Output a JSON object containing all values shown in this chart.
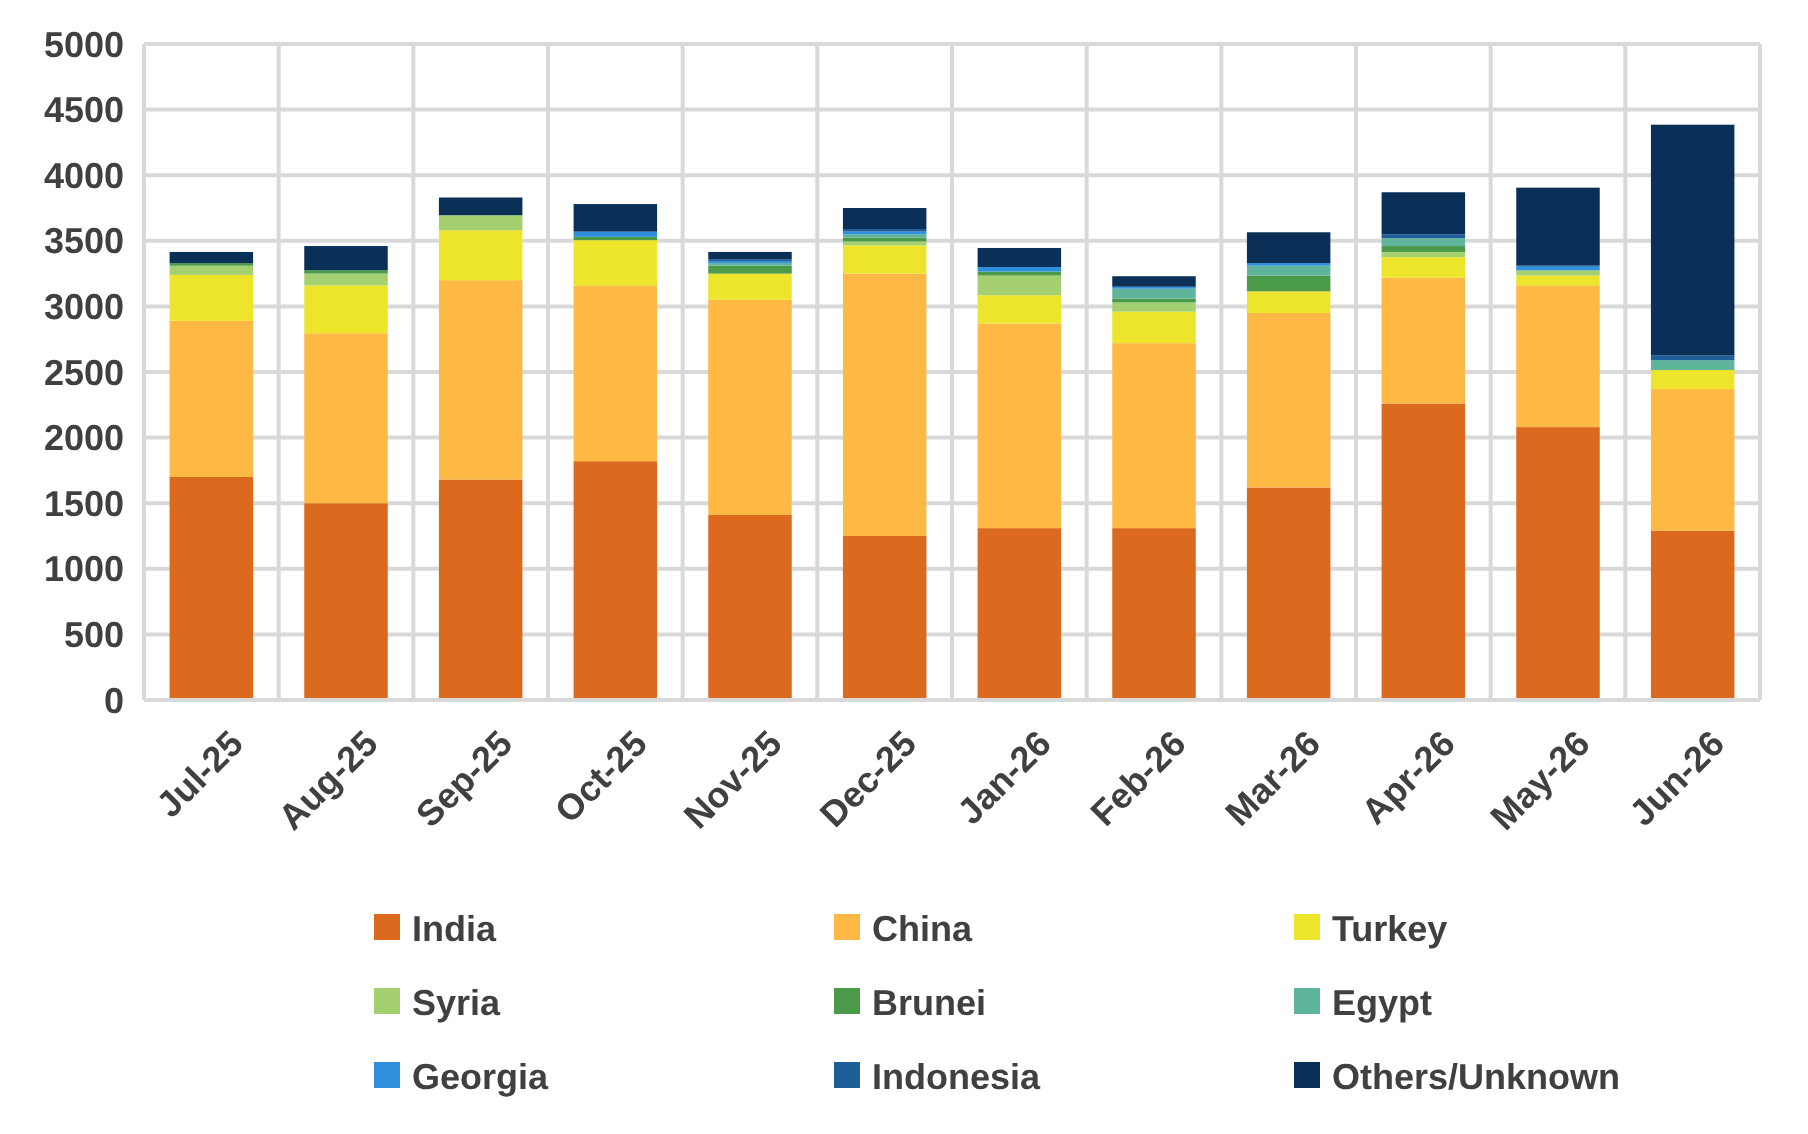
{
  "chart_data": {
    "type": "bar",
    "stacked": true,
    "categories": [
      "Jul-25",
      "Aug-25",
      "Sep-25",
      "Oct-25",
      "Nov-25",
      "Dec-25",
      "Jan-26",
      "Feb-26",
      "Mar-26",
      "Apr-26",
      "May-26",
      "Jun-26"
    ],
    "series": [
      {
        "name": "India",
        "color": "#dc6a1e",
        "values": [
          1700,
          1500,
          1680,
          1820,
          1410,
          1250,
          1310,
          1310,
          1620,
          2260,
          2080,
          1290
        ]
      },
      {
        "name": "China",
        "color": "#fdb943",
        "values": [
          1190,
          1295,
          1520,
          1340,
          1640,
          2000,
          1560,
          1410,
          1330,
          960,
          1080,
          1080
        ]
      },
      {
        "name": "Turkey",
        "color": "#ede52c",
        "values": [
          350,
          365,
          380,
          345,
          200,
          215,
          215,
          240,
          165,
          155,
          75,
          145
        ]
      },
      {
        "name": "Syria",
        "color": "#a4d070",
        "values": [
          70,
          90,
          115,
          0,
          0,
          30,
          150,
          70,
          0,
          40,
          40,
          0
        ]
      },
      {
        "name": "Brunei",
        "color": "#4a9a4a",
        "values": [
          20,
          25,
          0,
          25,
          60,
          30,
          30,
          30,
          120,
          45,
          0,
          0
        ]
      },
      {
        "name": "Egypt",
        "color": "#5fb49c",
        "values": [
          0,
          0,
          0,
          0,
          20,
          25,
          0,
          75,
          75,
          60,
          0,
          75
        ]
      },
      {
        "name": "Georgia",
        "color": "#2f8fdc",
        "values": [
          0,
          0,
          0,
          40,
          15,
          20,
          35,
          15,
          20,
          0,
          35,
          0
        ]
      },
      {
        "name": "Indonesia",
        "color": "#1f5f99",
        "values": [
          0,
          0,
          0,
          0,
          15,
          20,
          0,
          0,
          0,
          30,
          0,
          35
        ]
      },
      {
        "name": "Others/Unknown",
        "color": "#0b3058",
        "values": [
          85,
          185,
          135,
          210,
          55,
          160,
          145,
          80,
          235,
          320,
          595,
          1760
        ]
      }
    ],
    "ylim": [
      0,
      5000
    ],
    "yticks": [
      0,
      500,
      1000,
      1500,
      2000,
      2500,
      3000,
      3500,
      4000,
      4500,
      5000
    ],
    "grid": true,
    "legend": "bottom"
  }
}
